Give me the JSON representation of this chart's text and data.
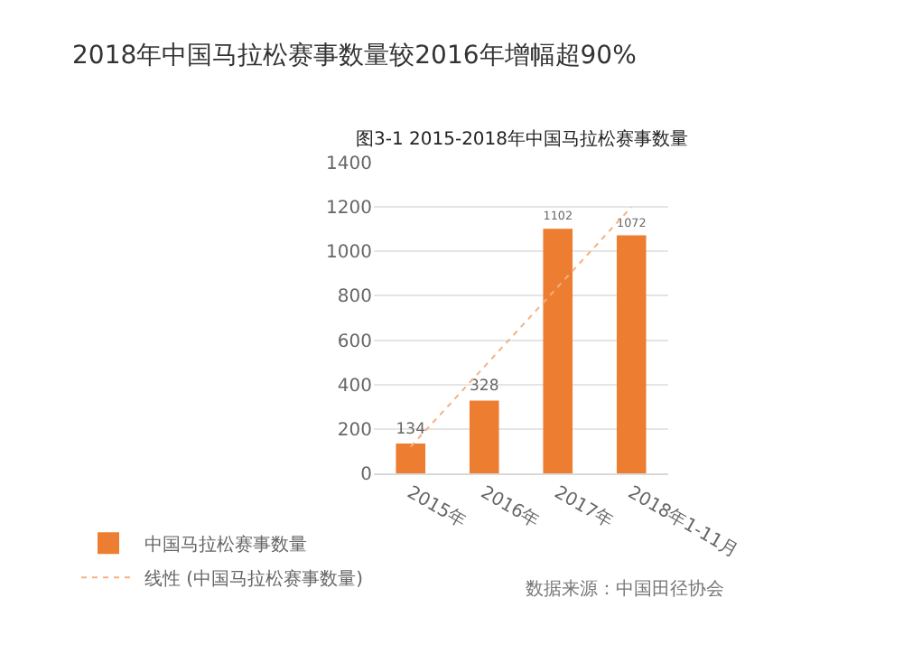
{
  "chart_data": {
    "type": "bar",
    "title": "2018年中国马拉松赛事数量较2016年增幅超90%",
    "subtitle": "图3-1 2015-2018年中国马拉松赛事数量",
    "categories": [
      "2015年",
      "2016年",
      "2017年",
      "2018年1-11月"
    ],
    "series": [
      {
        "name": "中国马拉松赛事数量",
        "color": "#ed7d31",
        "values": [
          134,
          328,
          1102,
          1072
        ],
        "data_labels": true
      },
      {
        "name": "线性 (中国马拉松赛事数量)",
        "type": "line",
        "color": "#f4b183",
        "line_style": "dotted",
        "values": [
          120,
          480,
          840,
          1200
        ]
      }
    ],
    "ylim": [
      0,
      1400
    ],
    "yticks": [
      0,
      200,
      400,
      600,
      800,
      1000,
      1200,
      1400
    ],
    "grid": "y",
    "legend": "bottom",
    "marker": "none",
    "annotations": [
      "数据来源：中国田径协会"
    ]
  }
}
